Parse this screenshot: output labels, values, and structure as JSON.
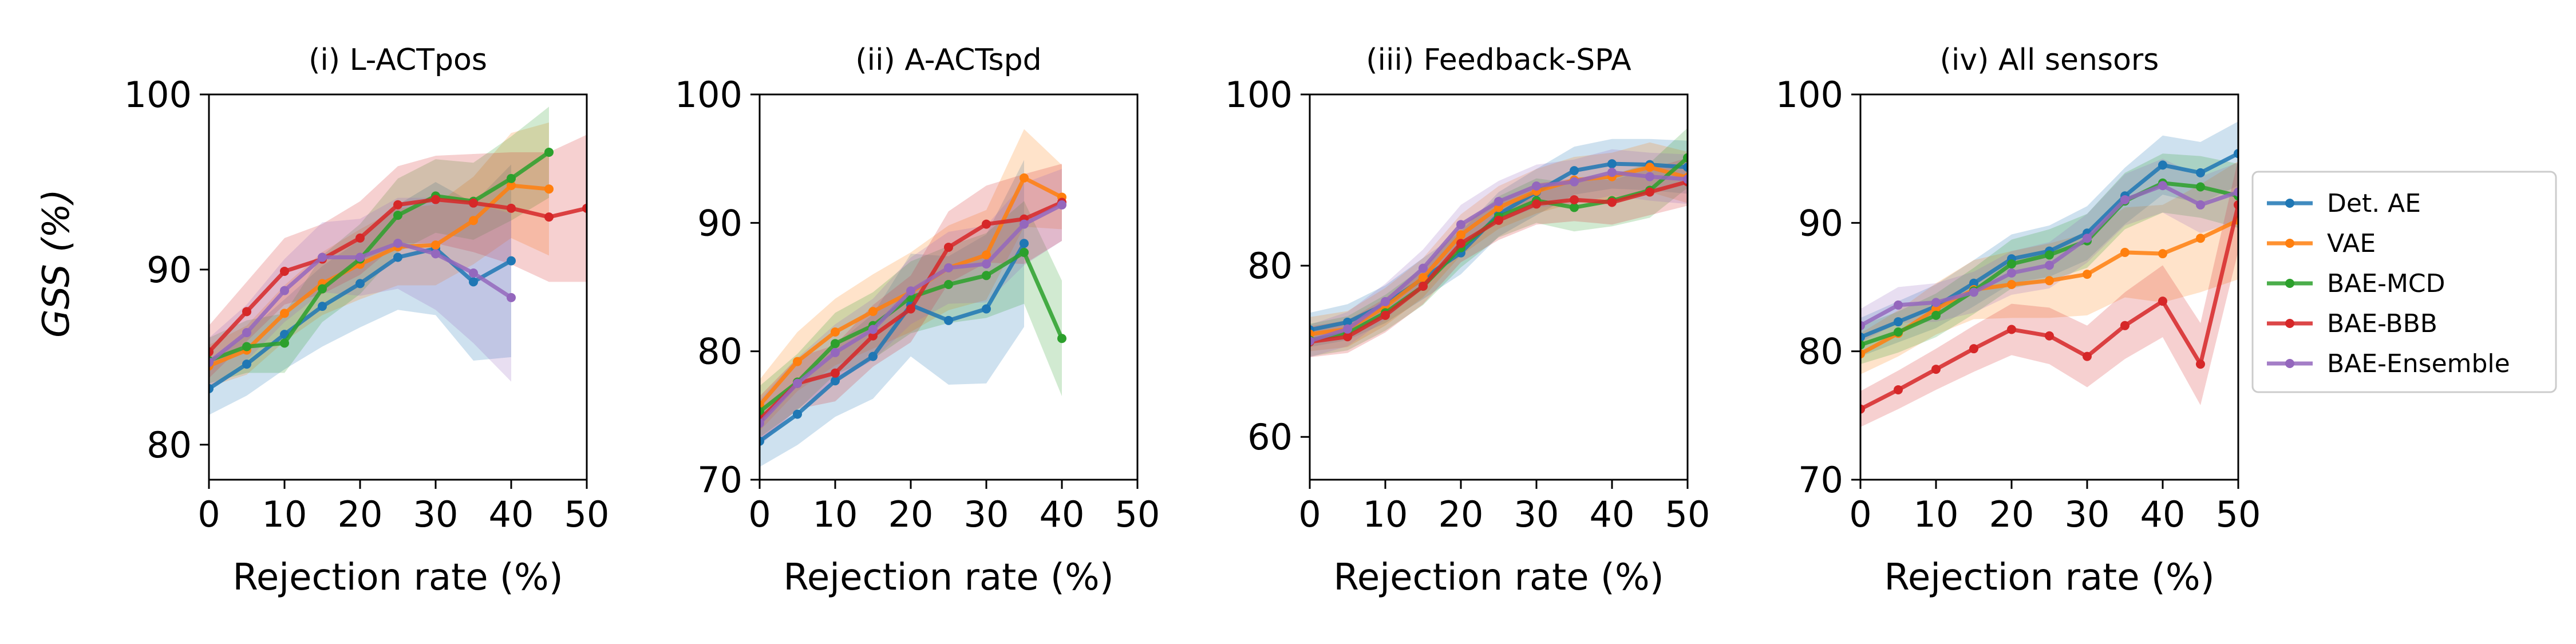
{
  "figure": {
    "ylabel": "GSS (%)"
  },
  "legend": {
    "entries": [
      {
        "name": "Det. AE",
        "color": "#1f77b4"
      },
      {
        "name": "VAE",
        "color": "#ff7f0e"
      },
      {
        "name": "BAE-MCD",
        "color": "#2ca02c"
      },
      {
        "name": "BAE-BBB",
        "color": "#d62728"
      },
      {
        "name": "BAE-Ensemble",
        "color": "#9467bd"
      }
    ]
  },
  "chart_data": [
    {
      "type": "line",
      "title": "(i) L-ACTpos",
      "xlabel": "Rejection rate (%)",
      "ylabel": "GSS (%)",
      "xlim": [
        0,
        50
      ],
      "ylim": [
        78,
        100
      ],
      "xticks": [
        0,
        10,
        20,
        30,
        40,
        50
      ],
      "yticks": [
        80,
        90,
        100
      ],
      "series": [
        {
          "name": "Det. AE",
          "x": [
            0,
            5,
            10,
            15,
            20,
            25,
            30,
            35,
            40
          ],
          "y": [
            83.2,
            84.6,
            86.3,
            87.9,
            89.2,
            90.7,
            91.2,
            89.3,
            90.5
          ],
          "band": [
            1.5,
            1.8,
            2.0,
            2.3,
            2.5,
            3.0,
            3.8,
            4.5,
            5.5
          ]
        },
        {
          "name": "VAE",
          "x": [
            0,
            5,
            10,
            15,
            20,
            25,
            30,
            35,
            40,
            45
          ],
          "y": [
            84.5,
            85.4,
            87.5,
            89.2,
            90.3,
            91.3,
            91.4,
            92.8,
            94.8,
            94.6
          ],
          "band": [
            1.2,
            1.4,
            1.6,
            1.8,
            2.0,
            2.2,
            2.3,
            2.5,
            3.0,
            3.8
          ]
        },
        {
          "name": "BAE-MCD",
          "x": [
            0,
            5,
            10,
            15,
            20,
            25,
            30,
            35,
            40,
            45
          ],
          "y": [
            84.8,
            85.6,
            85.8,
            88.9,
            90.6,
            93.1,
            94.2,
            93.9,
            95.2,
            96.7
          ],
          "band": [
            1.3,
            1.5,
            1.7,
            1.9,
            2.0,
            2.1,
            2.1,
            2.2,
            2.4,
            2.6
          ]
        },
        {
          "name": "BAE-BBB",
          "x": [
            0,
            5,
            10,
            15,
            20,
            25,
            30,
            35,
            40,
            45,
            50
          ],
          "y": [
            85.3,
            87.6,
            89.9,
            90.6,
            91.8,
            93.7,
            94.0,
            93.8,
            93.5,
            93.0,
            93.5
          ],
          "band": [
            1.5,
            1.7,
            1.9,
            2.0,
            2.1,
            2.2,
            2.5,
            2.8,
            3.2,
            3.7,
            4.2
          ]
        },
        {
          "name": "BAE-Ensemble",
          "x": [
            0,
            5,
            10,
            15,
            20,
            25,
            30,
            35,
            40
          ],
          "y": [
            84.7,
            86.4,
            88.8,
            90.7,
            90.7,
            91.5,
            90.9,
            89.8,
            88.4
          ],
          "band": [
            1.4,
            1.6,
            1.8,
            2.0,
            2.2,
            2.6,
            3.2,
            4.0,
            4.8
          ]
        }
      ]
    },
    {
      "type": "line",
      "title": "(ii) A-ACTspd",
      "xlabel": "Rejection rate (%)",
      "ylabel": "",
      "xlim": [
        0,
        50
      ],
      "ylim": [
        70,
        100
      ],
      "xticks": [
        0,
        10,
        20,
        30,
        40,
        50
      ],
      "yticks": [
        70,
        80,
        90,
        100
      ],
      "series": [
        {
          "name": "Det. AE",
          "x": [
            0,
            5,
            10,
            15,
            20,
            25,
            30,
            35
          ],
          "y": [
            73.0,
            75.1,
            77.7,
            79.6,
            83.6,
            82.4,
            83.3,
            88.4
          ],
          "band": [
            2.0,
            2.4,
            2.8,
            3.3,
            4.0,
            5.0,
            5.8,
            6.5
          ]
        },
        {
          "name": "VAE",
          "x": [
            0,
            5,
            10,
            15,
            20,
            25,
            30,
            35,
            40
          ],
          "y": [
            75.8,
            79.2,
            81.5,
            83.1,
            84.6,
            86.5,
            87.5,
            93.5,
            92.0
          ],
          "band": [
            2.0,
            2.3,
            2.6,
            2.9,
            3.1,
            3.3,
            3.5,
            3.8,
            2.5
          ]
        },
        {
          "name": "BAE-MCD",
          "x": [
            0,
            5,
            10,
            15,
            20,
            25,
            30,
            35,
            40
          ],
          "y": [
            75.3,
            77.6,
            80.6,
            82.0,
            84.2,
            85.2,
            85.9,
            87.7,
            81.0
          ],
          "band": [
            2.0,
            2.2,
            2.4,
            2.6,
            2.8,
            3.0,
            3.3,
            4.0,
            4.5
          ]
        },
        {
          "name": "BAE-BBB",
          "x": [
            0,
            5,
            10,
            15,
            20,
            25,
            30,
            35,
            40
          ],
          "y": [
            74.7,
            77.5,
            78.3,
            81.2,
            83.3,
            88.1,
            89.9,
            90.3,
            91.6
          ],
          "band": [
            1.8,
            2.0,
            2.2,
            2.4,
            2.6,
            2.8,
            3.0,
            3.5,
            3.0
          ]
        },
        {
          "name": "BAE-Ensemble",
          "x": [
            0,
            5,
            10,
            15,
            20,
            25,
            30,
            35,
            40
          ],
          "y": [
            74.4,
            77.5,
            79.9,
            81.7,
            84.7,
            86.5,
            86.8,
            89.9,
            91.4
          ],
          "band": [
            1.8,
            2.0,
            2.2,
            2.4,
            2.6,
            2.8,
            3.0,
            3.2,
            2.8
          ]
        }
      ]
    },
    {
      "type": "line",
      "title": "(iii) Feedback-SPA",
      "xlabel": "Rejection rate (%)",
      "ylabel": "",
      "xlim": [
        0,
        50
      ],
      "ylim": [
        55,
        100
      ],
      "xticks": [
        0,
        10,
        20,
        30,
        40,
        50
      ],
      "yticks": [
        60,
        80,
        100
      ],
      "series": [
        {
          "name": "Det. AE",
          "x": [
            0,
            5,
            10,
            15,
            20,
            25,
            30,
            35,
            40,
            45,
            50
          ],
          "y": [
            72.5,
            73.4,
            75.5,
            78.5,
            81.5,
            86.0,
            88.6,
            91.1,
            91.9,
            91.8,
            91.5
          ],
          "band": [
            2.0,
            2.1,
            2.2,
            2.4,
            2.5,
            2.6,
            2.7,
            2.8,
            2.9,
            3.0,
            3.1
          ]
        },
        {
          "name": "VAE",
          "x": [
            0,
            5,
            10,
            15,
            20,
            25,
            30,
            35,
            40,
            45,
            50
          ],
          "y": [
            72.0,
            72.6,
            75.2,
            78.6,
            83.6,
            86.8,
            88.7,
            90.0,
            90.4,
            91.5,
            90.3
          ],
          "band": [
            2.0,
            2.1,
            2.2,
            2.3,
            2.4,
            2.5,
            2.6,
            2.7,
            2.8,
            2.9,
            3.0
          ]
        },
        {
          "name": "BAE-MCD",
          "x": [
            0,
            5,
            10,
            15,
            20,
            25,
            30,
            35,
            40,
            45,
            50
          ],
          "y": [
            71.3,
            72.1,
            74.5,
            77.6,
            82.1,
            85.7,
            87.6,
            86.8,
            87.6,
            88.8,
            92.6
          ],
          "band": [
            1.9,
            2.0,
            2.1,
            2.2,
            2.3,
            2.4,
            2.6,
            2.8,
            3.0,
            3.2,
            3.5
          ]
        },
        {
          "name": "BAE-BBB",
          "x": [
            0,
            5,
            10,
            15,
            20,
            25,
            30,
            35,
            40,
            45,
            50
          ],
          "y": [
            71.1,
            71.7,
            74.2,
            77.6,
            82.6,
            85.3,
            87.2,
            87.7,
            87.4,
            88.6,
            89.8
          ],
          "band": [
            1.8,
            1.9,
            2.0,
            2.1,
            2.2,
            2.3,
            2.4,
            2.5,
            2.6,
            2.7,
            2.8
          ]
        },
        {
          "name": "BAE-Ensemble",
          "x": [
            0,
            5,
            10,
            15,
            20,
            25,
            30,
            35,
            40,
            45,
            50
          ],
          "y": [
            71.2,
            72.6,
            75.8,
            79.7,
            84.8,
            87.5,
            89.3,
            89.8,
            90.9,
            90.4,
            90.1
          ],
          "band": [
            1.9,
            2.0,
            2.1,
            2.2,
            2.3,
            2.4,
            2.5,
            2.6,
            2.7,
            2.8,
            2.9
          ]
        }
      ]
    },
    {
      "type": "line",
      "title": "(iv) All sensors",
      "xlabel": "Rejection rate (%)",
      "ylabel": "",
      "xlim": [
        0,
        50
      ],
      "ylim": [
        70,
        100
      ],
      "xticks": [
        0,
        10,
        20,
        30,
        40,
        50
      ],
      "yticks": [
        70,
        80,
        90,
        100
      ],
      "series": [
        {
          "name": "Det. AE",
          "x": [
            0,
            5,
            10,
            15,
            20,
            25,
            30,
            35,
            40,
            45,
            50
          ],
          "y": [
            81.1,
            82.3,
            83.5,
            85.3,
            87.2,
            87.8,
            89.2,
            92.1,
            94.5,
            93.9,
            95.4
          ],
          "band": [
            1.5,
            1.6,
            1.7,
            1.8,
            1.9,
            2.0,
            2.1,
            2.2,
            2.3,
            2.4,
            2.5
          ]
        },
        {
          "name": "VAE",
          "x": [
            0,
            5,
            10,
            15,
            20,
            25,
            30,
            35,
            40,
            45,
            50
          ],
          "y": [
            79.8,
            81.4,
            83.3,
            84.8,
            85.2,
            85.5,
            86.0,
            87.7,
            87.6,
            88.8,
            90.2
          ],
          "band": [
            1.6,
            1.8,
            2.0,
            2.3,
            2.6,
            2.9,
            3.2,
            3.5,
            3.8,
            4.2,
            4.6
          ]
        },
        {
          "name": "BAE-MCD",
          "x": [
            0,
            5,
            10,
            15,
            20,
            25,
            30,
            35,
            40,
            45,
            50
          ],
          "y": [
            80.5,
            81.5,
            82.8,
            84.7,
            86.8,
            87.5,
            88.6,
            91.7,
            93.1,
            92.8,
            92.1
          ],
          "band": [
            1.5,
            1.6,
            1.7,
            1.8,
            1.9,
            2.0,
            2.1,
            2.2,
            2.3,
            2.4,
            2.5
          ]
        },
        {
          "name": "BAE-BBB",
          "x": [
            0,
            5,
            10,
            15,
            20,
            25,
            30,
            35,
            40,
            45,
            50
          ],
          "y": [
            75.5,
            77.0,
            78.6,
            80.2,
            81.7,
            81.2,
            79.6,
            82.0,
            83.9,
            79.0,
            91.4
          ],
          "band": [
            1.4,
            1.5,
            1.6,
            1.8,
            2.0,
            2.2,
            2.4,
            2.6,
            2.8,
            3.2,
            3.6
          ]
        },
        {
          "name": "BAE-Ensemble",
          "x": [
            0,
            5,
            10,
            15,
            20,
            25,
            30,
            35,
            40,
            45,
            50
          ],
          "y": [
            82.0,
            83.6,
            83.8,
            84.6,
            86.1,
            86.7,
            88.8,
            91.8,
            92.9,
            91.4,
            92.4
          ],
          "band": [
            1.3,
            1.4,
            1.5,
            1.6,
            1.7,
            1.8,
            1.9,
            2.0,
            2.1,
            2.2,
            2.3
          ]
        }
      ]
    }
  ]
}
